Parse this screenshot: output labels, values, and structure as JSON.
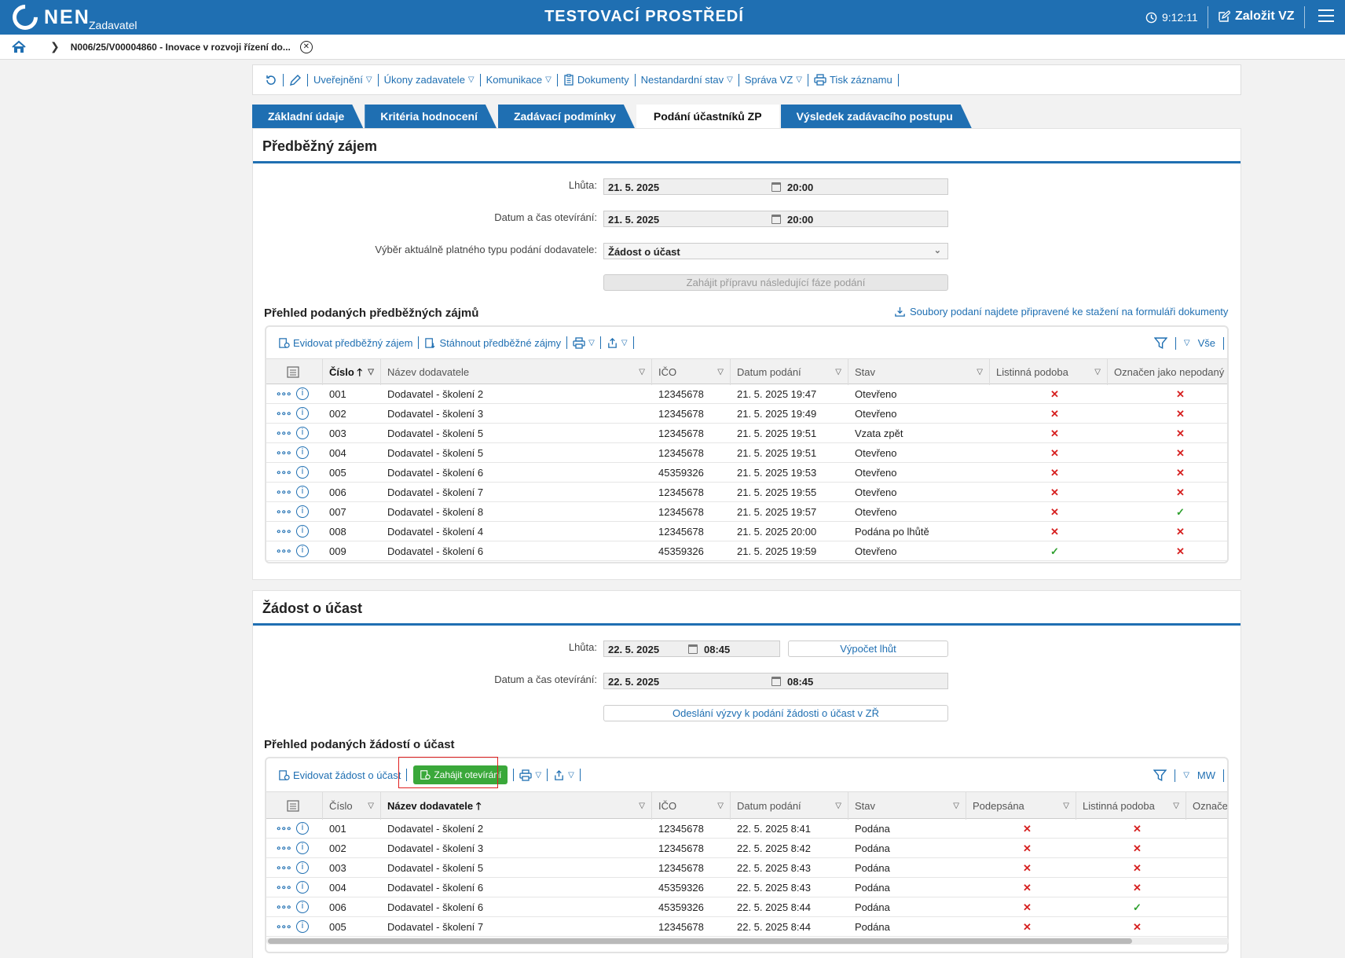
{
  "header": {
    "brand": "NEN",
    "brand_sub": "Zadavatel",
    "env_title": "TESTOVACÍ PROSTŘEDÍ",
    "time": "9:12:11",
    "create_label": "Založit VZ"
  },
  "breadcrumb": {
    "text": "N006/25/V00004860 - Inovace v rozvoji řízení do..."
  },
  "toolbar": {
    "items": [
      "Uveřejnění",
      "Úkony zadavatele",
      "Komunikace",
      "Dokumenty",
      "Nestandardní stav",
      "Správa VZ",
      "Tisk záznamu"
    ]
  },
  "tabs": [
    "Základní údaje",
    "Kritéria hodnocení",
    "Zadávací podmínky",
    "Podání účastníků ZP",
    "Výsledek zadávacího postupu"
  ],
  "section1": {
    "title": "Předběžný zájem",
    "deadline_label": "Lhůta:",
    "deadline_date": "21. 5. 2025",
    "deadline_time": "20:00",
    "opening_label": "Datum a čas otevírání:",
    "opening_date": "21. 5. 2025",
    "opening_time": "20:00",
    "type_label": "Výběr aktuálně platného typu podání dodavatele:",
    "type_value": "Žádost o účast",
    "next_phase_button": "Zahájit přípravu následující fáze podání",
    "overview_title": "Přehled podaných předběžných zájmů",
    "download_note": "Soubory podaní najdete připravené ke stažení na formuláři dokumenty",
    "grid_toolbar": {
      "register": "Evidovat předběžný zájem",
      "download": "Stáhnout předběžné zájmy",
      "filter_all": "Vše"
    },
    "columns": [
      "Číslo",
      "Název dodavatele",
      "IČO",
      "Datum podání",
      "Stav",
      "Listinná podoba",
      "Označen jako nepodaný"
    ],
    "rows": [
      {
        "num": "001",
        "name": "Dodavatel - školení 2",
        "ico": "12345678",
        "date": "21. 5. 2025 19:47",
        "state": "Otevřeno",
        "paper": false,
        "unsubmitted": false
      },
      {
        "num": "002",
        "name": "Dodavatel - školení 3",
        "ico": "12345678",
        "date": "21. 5. 2025 19:49",
        "state": "Otevřeno",
        "paper": false,
        "unsubmitted": false
      },
      {
        "num": "003",
        "name": "Dodavatel - školení 5",
        "ico": "12345678",
        "date": "21. 5. 2025 19:51",
        "state": "Vzata zpět",
        "paper": false,
        "unsubmitted": false
      },
      {
        "num": "004",
        "name": "Dodavatel - školení 5",
        "ico": "12345678",
        "date": "21. 5. 2025 19:51",
        "state": "Otevřeno",
        "paper": false,
        "unsubmitted": false
      },
      {
        "num": "005",
        "name": "Dodavatel - školení 6",
        "ico": "45359326",
        "date": "21. 5. 2025 19:53",
        "state": "Otevřeno",
        "paper": false,
        "unsubmitted": false
      },
      {
        "num": "006",
        "name": "Dodavatel - školení 7",
        "ico": "12345678",
        "date": "21. 5. 2025 19:55",
        "state": "Otevřeno",
        "paper": false,
        "unsubmitted": false
      },
      {
        "num": "007",
        "name": "Dodavatel - školení 8",
        "ico": "12345678",
        "date": "21. 5. 2025 19:57",
        "state": "Otevřeno",
        "paper": false,
        "unsubmitted": true
      },
      {
        "num": "008",
        "name": "Dodavatel - školení 4",
        "ico": "12345678",
        "date": "21. 5. 2025 20:00",
        "state": "Podána po lhůtě",
        "paper": false,
        "unsubmitted": false
      },
      {
        "num": "009",
        "name": "Dodavatel - školení 6",
        "ico": "45359326",
        "date": "21. 5. 2025 19:59",
        "state": "Otevřeno",
        "paper": true,
        "unsubmitted": false
      }
    ]
  },
  "section2": {
    "title": "Žádost o účast",
    "deadline_label": "Lhůta:",
    "deadline_date": "22. 5. 2025",
    "deadline_time": "08:45",
    "calc_button": "Výpočet lhůt",
    "opening_label": "Datum a čas otevírání:",
    "opening_date": "22. 5. 2025",
    "opening_time": "08:45",
    "send_button": "Odeslání výzvy k podání žádosti o účast v ZŘ",
    "overview_title": "Přehled podaných žádostí o účast",
    "grid_toolbar": {
      "register": "Evidovat žádost o účast",
      "start_opening": "Zahájit otevírání",
      "filter_mw": "MW"
    },
    "columns": [
      "Číslo",
      "Název dodavatele",
      "IČO",
      "Datum podání",
      "Stav",
      "Podepsána",
      "Listinná podoba",
      "Označe"
    ],
    "rows": [
      {
        "num": "001",
        "name": "Dodavatel - školení 2",
        "ico": "12345678",
        "date": "22. 5. 2025 8:41",
        "state": "Podána",
        "signed": false,
        "paper": false
      },
      {
        "num": "002",
        "name": "Dodavatel - školení 3",
        "ico": "12345678",
        "date": "22. 5. 2025 8:42",
        "state": "Podána",
        "signed": false,
        "paper": false
      },
      {
        "num": "003",
        "name": "Dodavatel - školení 5",
        "ico": "12345678",
        "date": "22. 5. 2025 8:43",
        "state": "Podána",
        "signed": false,
        "paper": false
      },
      {
        "num": "004",
        "name": "Dodavatel - školení 6",
        "ico": "45359326",
        "date": "22. 5. 2025 8:43",
        "state": "Podána",
        "signed": false,
        "paper": false
      },
      {
        "num": "006",
        "name": "Dodavatel - školení 6",
        "ico": "45359326",
        "date": "22. 5. 2025 8:44",
        "state": "Podána",
        "signed": false,
        "paper": true
      },
      {
        "num": "005",
        "name": "Dodavatel - školení 7",
        "ico": "12345678",
        "date": "22. 5. 2025 8:44",
        "state": "Podána",
        "signed": false,
        "paper": false
      }
    ]
  },
  "colors": {
    "brand": "#1f6fb2",
    "danger": "#d62020",
    "success": "#2ea02e",
    "action_green": "#3aa83a"
  }
}
